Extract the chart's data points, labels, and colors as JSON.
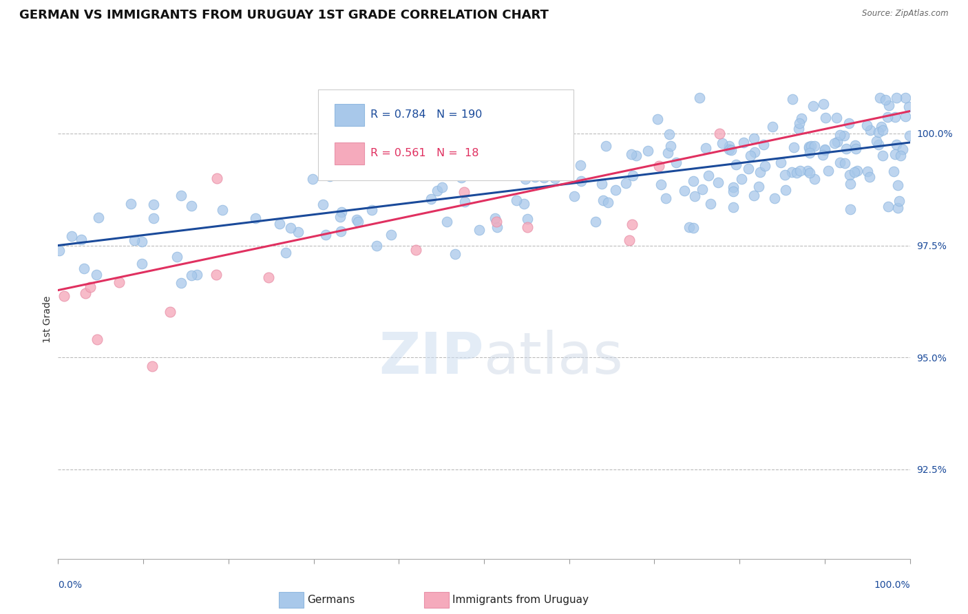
{
  "title": "GERMAN VS IMMIGRANTS FROM URUGUAY 1ST GRADE CORRELATION CHART",
  "source": "Source: ZipAtlas.com",
  "ylabel": "1st Grade",
  "xlim": [
    0,
    100
  ],
  "ylim": [
    90.5,
    101.2
  ],
  "yticks": [
    92.5,
    95.0,
    97.5,
    100.0
  ],
  "ytick_labels": [
    "92.5%",
    "95.0%",
    "97.5%",
    "100.0%"
  ],
  "legend_R_blue": "R = 0.784",
  "legend_N_blue": "N = 190",
  "legend_R_pink": "R = 0.561",
  "legend_N_pink": "N =  18",
  "blue_color": "#a8c8ea",
  "blue_edge_color": "#90b8e0",
  "blue_line_color": "#1a4a9a",
  "pink_color": "#f5aabc",
  "pink_edge_color": "#e890a8",
  "pink_line_color": "#e03060",
  "background_color": "#ffffff",
  "title_fontsize": 13,
  "axis_label_fontsize": 10,
  "tick_fontsize": 10,
  "blue_line_start_y": 97.5,
  "blue_line_end_y": 99.8,
  "pink_line_start_y": 96.5,
  "pink_line_end_y": 100.5
}
